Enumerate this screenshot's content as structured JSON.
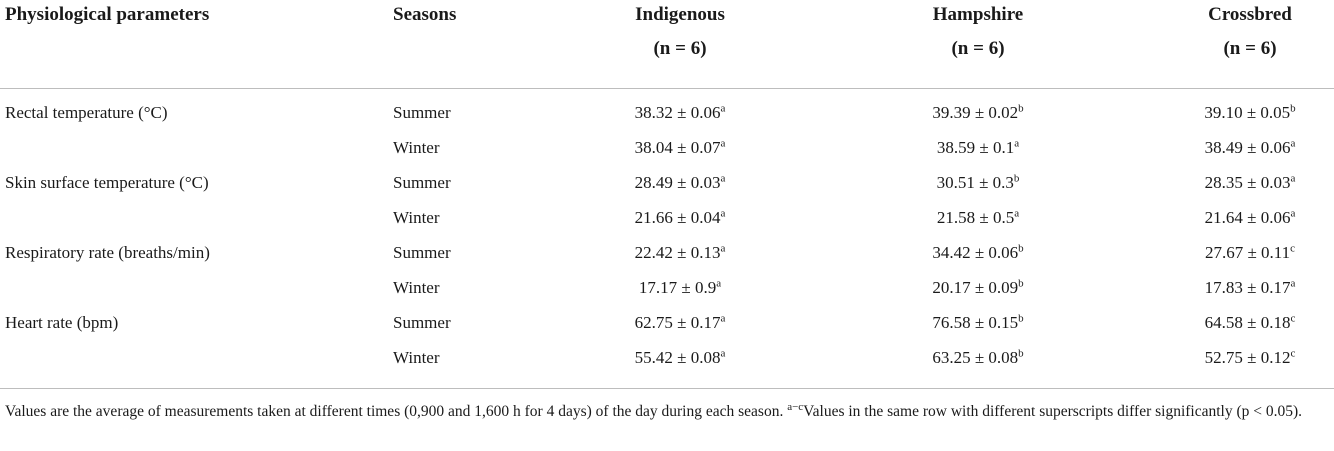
{
  "table": {
    "columns": [
      {
        "label": "Physiological parameters"
      },
      {
        "label": "Seasons"
      },
      {
        "label": "Indigenous",
        "sub": "(n = 6)"
      },
      {
        "label": "Hampshire",
        "sub": "(n = 6)"
      },
      {
        "label": "Crossbred",
        "sub": "(n = 6)"
      }
    ],
    "groups": [
      {
        "parameter": "Rectal temperature (°C)",
        "rows": [
          {
            "season": "Summer",
            "cells": [
              {
                "value": "38.32 ± 0.06",
                "sup": "a"
              },
              {
                "value": "39.39 ± 0.02",
                "sup": "b"
              },
              {
                "value": "39.10 ± 0.05",
                "sup": "b"
              }
            ]
          },
          {
            "season": "Winter",
            "cells": [
              {
                "value": "38.04 ± 0.07",
                "sup": "a"
              },
              {
                "value": "38.59 ± 0.1",
                "sup": "a"
              },
              {
                "value": "38.49 ± 0.06",
                "sup": "a"
              }
            ]
          }
        ]
      },
      {
        "parameter": "Skin surface temperature (°C)",
        "rows": [
          {
            "season": "Summer",
            "cells": [
              {
                "value": "28.49 ± 0.03",
                "sup": "a"
              },
              {
                "value": "30.51 ± 0.3",
                "sup": "b"
              },
              {
                "value": "28.35 ± 0.03",
                "sup": "a"
              }
            ]
          },
          {
            "season": "Winter",
            "cells": [
              {
                "value": "21.66 ± 0.04",
                "sup": "a"
              },
              {
                "value": "21.58 ± 0.5",
                "sup": "a"
              },
              {
                "value": "21.64 ± 0.06",
                "sup": "a"
              }
            ]
          }
        ]
      },
      {
        "parameter": "Respiratory rate (breaths/min)",
        "rows": [
          {
            "season": "Summer",
            "cells": [
              {
                "value": "22.42 ± 0.13",
                "sup": "a"
              },
              {
                "value": "34.42 ± 0.06",
                "sup": "b"
              },
              {
                "value": "27.67 ± 0.11",
                "sup": "c"
              }
            ]
          },
          {
            "season": "Winter",
            "cells": [
              {
                "value": "17.17 ± 0.9",
                "sup": "a"
              },
              {
                "value": "20.17 ± 0.09",
                "sup": "b"
              },
              {
                "value": "17.83 ± 0.17",
                "sup": "a"
              }
            ]
          }
        ]
      },
      {
        "parameter": "Heart rate (bpm)",
        "rows": [
          {
            "season": "Summer",
            "cells": [
              {
                "value": "62.75 ± 0.17",
                "sup": "a"
              },
              {
                "value": "76.58 ± 0.15",
                "sup": "b"
              },
              {
                "value": "64.58 ± 0.18",
                "sup": "c"
              }
            ]
          },
          {
            "season": "Winter",
            "cells": [
              {
                "value": "55.42 ± 0.08",
                "sup": "a"
              },
              {
                "value": "63.25 ± 0.08",
                "sup": "b"
              },
              {
                "value": "52.75 ± 0.12",
                "sup": "c"
              }
            ]
          }
        ]
      }
    ]
  },
  "footnote": {
    "text": "Values are the average of measurements taken at different times (0,900 and 1,600 h for 4 days) of the day during each season. ",
    "sup": "a−c",
    "text2": "Values in the same row with different superscripts differ significantly (p < 0.05)."
  }
}
